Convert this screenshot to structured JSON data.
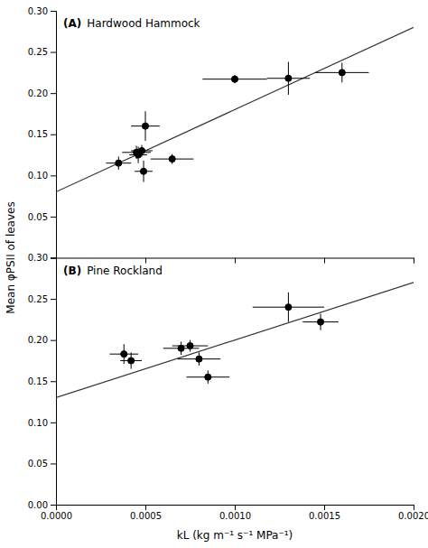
{
  "chart_data": [
    {
      "type": "scatter",
      "title": "(A)",
      "subtitle": "Hardwood Hammock",
      "ylabel": "Mean φPSII of leaves",
      "tick_labels": "y",
      "xlim": [
        0.0,
        0.002
      ],
      "xticks": [
        {
          "value": 0.0,
          "label": "0.0000"
        },
        0.0005,
        {
          "value": 0.001,
          "label": "0.0010"
        },
        0.0015,
        {
          "value": 0.002,
          "label": "0.0020"
        }
      ],
      "ylim": [
        0.0,
        0.3
      ],
      "yticks": [
        0.05,
        {
          "value": 0.1,
          "label": "0.10"
        },
        0.15,
        {
          "value": 0.2,
          "label": "0.20"
        },
        0.25,
        {
          "value": 0.3,
          "label": "0.30"
        }
      ],
      "series": [
        {
          "type": "line",
          "color": "#333333",
          "line_style": "solid",
          "x": [
            0.0,
            0.002
          ],
          "values": [
            0.08,
            0.28
          ]
        },
        {
          "type": "scatter",
          "color": "black",
          "marker": "circle",
          "x": [
            0.00035,
            0.00045,
            0.00048,
            0.0005,
            0.00046,
            0.00049,
            0.00065,
            0.001,
            0.0013,
            0.0016
          ],
          "values": [
            0.115,
            0.128,
            0.13,
            0.16,
            0.125,
            0.105,
            0.12,
            0.217,
            0.218,
            0.225
          ],
          "xerr": [
            7e-05,
            8e-05,
            6e-05,
            8e-05,
            5e-05,
            5e-05,
            0.00012,
            0.00018,
            0.00012,
            0.00015
          ],
          "yerr": [
            0.008,
            0.008,
            0.007,
            0.018,
            0.01,
            0.013,
            0.006,
            0.005,
            0.02,
            0.012
          ]
        }
      ]
    },
    {
      "type": "scatter",
      "title": "(B)",
      "subtitle": "Pine Rockland",
      "xlabel": "kL (kg m⁻¹ s⁻¹ MPa⁻¹)",
      "xlim": [
        0.0,
        0.002
      ],
      "xticks": [
        {
          "value": 0.0,
          "label": "0.0000"
        },
        0.0005,
        {
          "value": 0.001,
          "label": "0.0010"
        },
        0.0015,
        {
          "value": 0.002,
          "label": "0.0020"
        }
      ],
      "ylim": [
        0.0,
        0.3
      ],
      "yticks": [
        {
          "value": 0.0,
          "label": "0.00"
        },
        0.05,
        {
          "value": 0.1,
          "label": "0.10"
        },
        0.15,
        {
          "value": 0.2,
          "label": "0.20"
        },
        0.25,
        {
          "value": 0.3,
          "label": "0.30"
        }
      ],
      "series": [
        {
          "type": "line",
          "color": "#333333",
          "line_style": "solid",
          "x": [
            0.0,
            0.002
          ],
          "values": [
            0.13,
            0.27
          ]
        },
        {
          "type": "scatter",
          "color": "black",
          "marker": "circle",
          "x": [
            0.00038,
            0.00042,
            0.0007,
            0.00075,
            0.0008,
            0.00085,
            0.0013,
            0.00148
          ],
          "values": [
            0.183,
            0.175,
            0.19,
            0.193,
            0.177,
            0.155,
            0.24,
            0.222
          ],
          "xerr": [
            8e-05,
            6e-05,
            0.0001,
            0.0001,
            0.00012,
            0.00012,
            0.0002,
            0.0001
          ],
          "yerr": [
            0.012,
            0.01,
            0.008,
            0.007,
            0.008,
            0.008,
            0.018,
            0.01
          ]
        }
      ]
    }
  ]
}
